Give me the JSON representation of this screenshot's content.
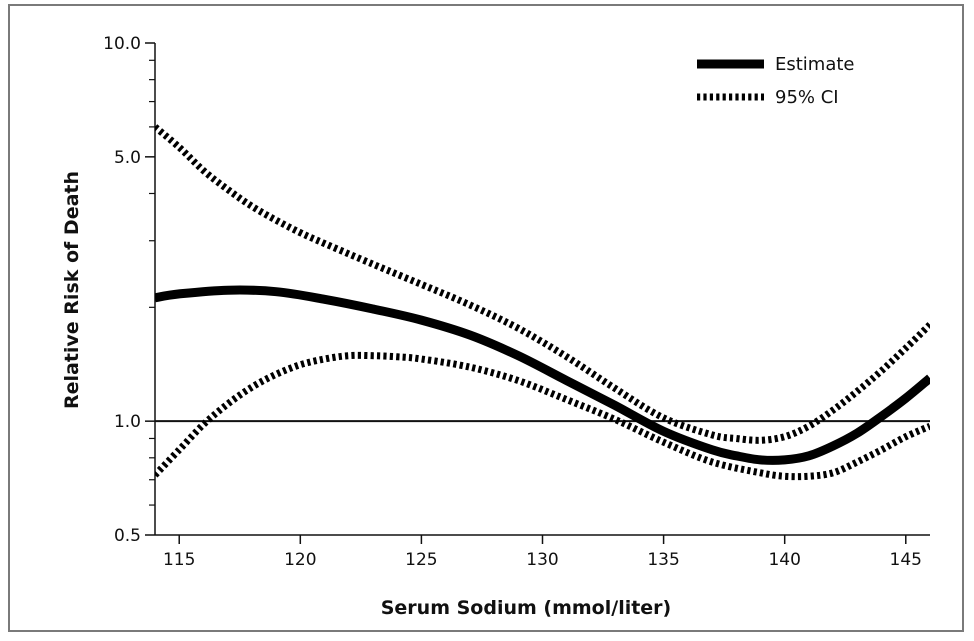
{
  "chart_data": {
    "type": "line",
    "xlabel": "Serum Sodium (mmol/liter)",
    "ylabel": "Relative Risk of Death",
    "xlim": [
      114,
      146
    ],
    "ylim": [
      0.5,
      10.0
    ],
    "yscale": "log",
    "x_ticks": [
      "115",
      "120",
      "125",
      "130",
      "135",
      "140",
      "145"
    ],
    "y_tick_labels": [
      {
        "value": 10.0,
        "label": "10.0"
      },
      {
        "value": 5.0,
        "label": "5.0"
      },
      {
        "value": 1.0,
        "label": "1.0"
      },
      {
        "value": 0.5,
        "label": "0.5"
      }
    ],
    "y_minor_ticks": [
      0.6,
      0.7,
      0.8,
      0.9,
      2,
      3,
      4,
      6,
      7,
      8,
      9
    ],
    "reference_line": 1.0,
    "legend": {
      "position": "top-right"
    },
    "series": [
      {
        "name": "Estimate",
        "style": "solid-thick",
        "color": "#000000",
        "x": [
          114,
          115,
          117,
          119,
          121,
          123,
          125,
          127,
          129,
          131,
          133,
          135,
          137,
          138,
          139,
          140,
          141,
          142,
          143,
          144,
          145,
          146
        ],
        "y": [
          2.12,
          2.17,
          2.22,
          2.2,
          2.1,
          1.98,
          1.85,
          1.69,
          1.49,
          1.28,
          1.1,
          0.94,
          0.84,
          0.81,
          0.79,
          0.79,
          0.81,
          0.86,
          0.93,
          1.03,
          1.15,
          1.3
        ]
      },
      {
        "name": "95% CI",
        "style": "dashed-thick",
        "color": "#000000",
        "x": [
          114,
          115,
          116,
          117,
          118,
          119,
          120,
          121,
          123,
          125,
          127,
          129,
          131,
          133,
          135,
          137,
          138,
          139,
          140,
          141,
          142,
          143,
          144,
          145,
          146
        ],
        "y": [
          6.0,
          5.3,
          4.6,
          4.1,
          3.7,
          3.4,
          3.15,
          2.95,
          2.6,
          2.3,
          2.03,
          1.76,
          1.48,
          1.22,
          1.02,
          0.92,
          0.9,
          0.89,
          0.91,
          0.97,
          1.07,
          1.2,
          1.36,
          1.56,
          1.8
        ]
      },
      {
        "name": "",
        "style": "dashed-thick",
        "color": "#000000",
        "x": [
          114,
          115,
          116,
          117,
          118,
          119,
          120,
          121,
          122,
          123,
          124,
          125,
          127,
          129,
          131,
          133,
          135,
          137,
          139,
          140,
          141,
          142,
          143,
          144,
          145,
          146
        ],
        "y": [
          0.72,
          0.84,
          0.98,
          1.11,
          1.23,
          1.33,
          1.41,
          1.46,
          1.49,
          1.49,
          1.48,
          1.46,
          1.39,
          1.28,
          1.14,
          1.01,
          0.88,
          0.78,
          0.73,
          0.715,
          0.715,
          0.73,
          0.78,
          0.84,
          0.91,
          0.97
        ]
      }
    ]
  }
}
